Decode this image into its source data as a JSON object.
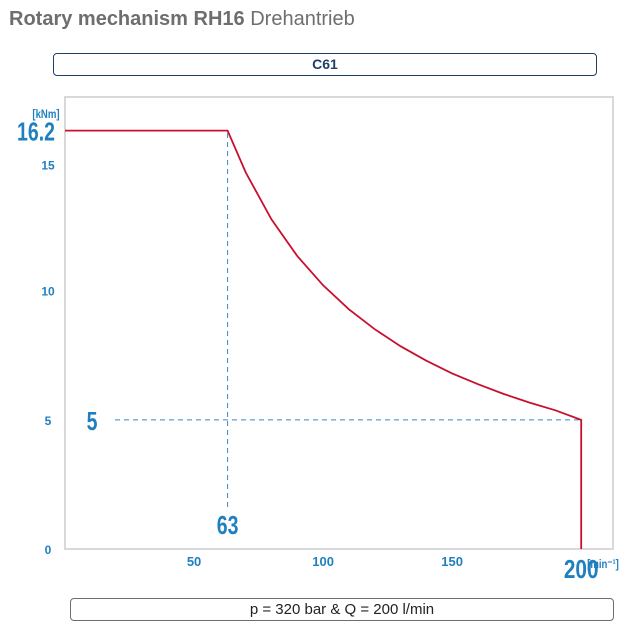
{
  "header": {
    "title_bold": "Rotary mechanism RH16",
    "title_light": "Drehantrieb"
  },
  "model_label": "C61",
  "footer_condition": "p = 320 bar & Q = 200 l/min",
  "colors": {
    "curve": "#c8102e",
    "axis_text": "#1f7fbf",
    "frame": "#d9d9d9",
    "guide": "#3a87c8"
  },
  "chart_data": {
    "type": "line",
    "xlabel": "[min⁻¹]",
    "ylabel": "[kNm]",
    "xlim": [
      0,
      210
    ],
    "ylim": [
      0,
      17.5
    ],
    "x_ticks": [
      {
        "value": 50,
        "label": "50"
      },
      {
        "value": 100,
        "label": "100"
      },
      {
        "value": 150,
        "label": "150"
      },
      {
        "value": 200,
        "label": "200"
      }
    ],
    "y_ticks": [
      {
        "value": 0,
        "label": "0"
      },
      {
        "value": 5,
        "label": "5"
      },
      {
        "value": 10,
        "label": "10"
      },
      {
        "value": 15,
        "label": "15"
      },
      {
        "value": 16.2,
        "label": "16.2"
      }
    ],
    "series": [
      {
        "x": [
          0,
          63,
          70,
          80,
          90,
          100,
          110,
          120,
          130,
          140,
          150,
          160,
          170,
          180,
          190,
          200,
          200
        ],
        "y": [
          16.2,
          16.2,
          14.58,
          12.76,
          11.34,
          10.21,
          9.28,
          8.51,
          7.85,
          7.29,
          6.8,
          6.38,
          6.0,
          5.67,
          5.37,
          5.0,
          0
        ]
      }
    ],
    "annotations": [
      {
        "label": "63",
        "x": 63,
        "type": "vertical-guide"
      },
      {
        "label": "5",
        "y": 5,
        "type": "horizontal-guide"
      }
    ]
  }
}
